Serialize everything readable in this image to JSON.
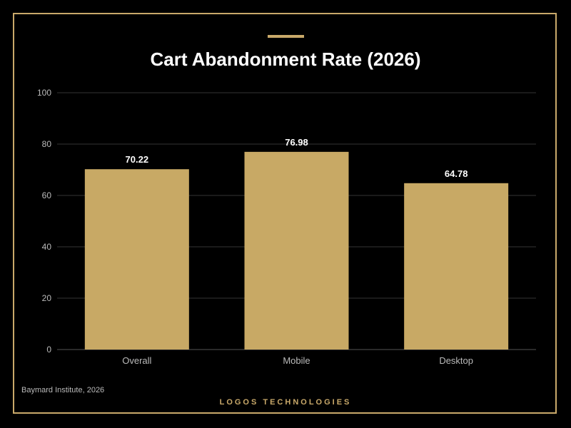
{
  "colors": {
    "background": "#000000",
    "accent": "#c9a96a",
    "bar": "#c8a965",
    "gridline": "#333333",
    "axis_text": "#bbbbbb",
    "title_text": "#ffffff"
  },
  "source": "Baymard Institute, 2026",
  "brand": "LOGOS TECHNOLOGIES",
  "chart_data": {
    "type": "bar",
    "title": "Cart Abandonment Rate (2026)",
    "xlabel": "",
    "ylabel": "",
    "categories": [
      "Overall",
      "Mobile",
      "Desktop"
    ],
    "values": [
      70.22,
      76.98,
      64.78
    ],
    "data_labels": [
      "70.22",
      "76.98",
      "64.78"
    ],
    "ylim": [
      0,
      100
    ],
    "yticks": [
      0,
      20,
      40,
      60,
      80,
      100
    ],
    "grid": true,
    "legend": "none"
  }
}
